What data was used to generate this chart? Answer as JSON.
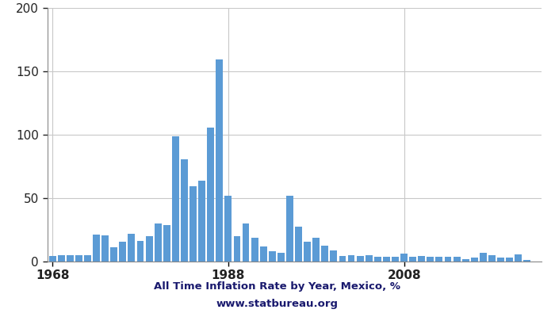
{
  "title": "All Time Inflation Rate by Year, Mexico, %",
  "subtitle": "www.statbureau.org",
  "bar_color": "#5b9bd5",
  "background_color": "#ffffff",
  "grid_color": "#c8c8c8",
  "years": [
    1968,
    1969,
    1970,
    1971,
    1972,
    1973,
    1974,
    1975,
    1976,
    1977,
    1978,
    1979,
    1980,
    1981,
    1982,
    1983,
    1984,
    1985,
    1986,
    1987,
    1988,
    1989,
    1990,
    1991,
    1992,
    1993,
    1994,
    1995,
    1996,
    1997,
    1998,
    1999,
    2000,
    2001,
    2002,
    2003,
    2004,
    2005,
    2006,
    2007,
    2008,
    2009,
    2010,
    2011,
    2012,
    2013,
    2014,
    2015,
    2016,
    2017,
    2018,
    2019,
    2020,
    2021,
    2022
  ],
  "values": [
    4.5,
    5.0,
    5.2,
    5.3,
    5.0,
    21.4,
    20.6,
    11.3,
    15.8,
    21.9,
    16.2,
    20.0,
    29.8,
    28.7,
    98.8,
    80.8,
    59.2,
    63.7,
    105.7,
    159.2,
    51.7,
    19.7,
    29.9,
    18.8,
    11.9,
    8.0,
    7.1,
    52.0,
    27.7,
    15.7,
    18.6,
    12.3,
    9.0,
    4.4,
    5.0,
    4.5,
    4.7,
    4.0,
    3.6,
    4.0,
    6.5,
    3.6,
    4.4,
    3.8,
    3.6,
    3.97,
    4.02,
    2.13,
    2.82,
    6.77,
    4.9,
    2.83,
    3.4,
    5.69,
    1.36
  ],
  "xlim_start": 1967.4,
  "xlim_end": 2023.6,
  "ylim": [
    0,
    200
  ],
  "yticks": [
    0,
    50,
    100,
    150,
    200
  ],
  "xticks": [
    1968,
    1988,
    2008
  ],
  "title_fontsize": 9.5,
  "subtitle_fontsize": 9.5,
  "tick_fontsize": 11,
  "title_color": "#1a1a6e",
  "subtitle_color": "#1a1a6e"
}
